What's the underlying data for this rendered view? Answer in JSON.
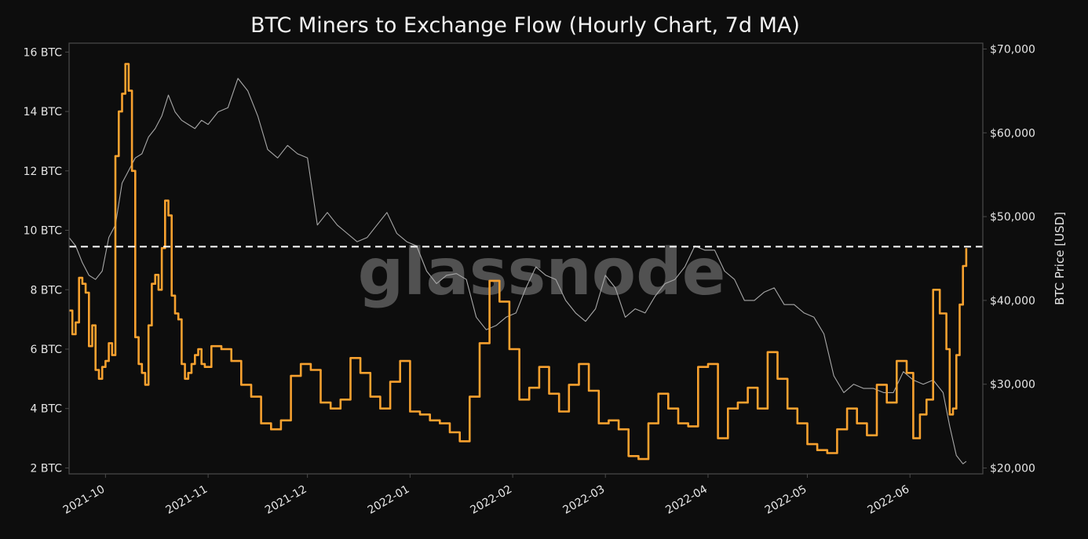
{
  "chart_data": {
    "type": "line",
    "title": "BTC Miners to Exchange Flow (Hourly Chart, 7d MA)",
    "watermark": "glassnode",
    "y_left": {
      "label": "",
      "range": [
        1.8,
        16.3
      ],
      "ticks": [
        2,
        4,
        6,
        8,
        10,
        12,
        14,
        16
      ],
      "tick_labels": [
        "2 BTC",
        "4 BTC",
        "6 BTC",
        "8 BTC",
        "10 BTC",
        "12 BTC",
        "14 BTC",
        "16 BTC"
      ]
    },
    "y_right": {
      "label": "BTC Price [USD]",
      "range": [
        19300,
        70700
      ],
      "ticks": [
        20000,
        30000,
        40000,
        50000,
        60000,
        70000
      ],
      "tick_labels": [
        "$20,000",
        "$30,000",
        "$40,000",
        "$50,000",
        "$60,000",
        "$70,000"
      ]
    },
    "x": {
      "range": [
        "2021-09-20",
        "2022-06-23"
      ],
      "ticks": [
        "2021-10-01",
        "2021-11-01",
        "2021-12-01",
        "2022-01-01",
        "2022-02-01",
        "2022-03-01",
        "2022-04-01",
        "2022-05-01",
        "2022-06-01"
      ],
      "tick_labels": [
        "2021-10",
        "2021-11",
        "2021-12",
        "2022-01",
        "2022-02",
        "2022-03",
        "2022-04",
        "2022-05",
        "2022-06"
      ]
    },
    "reference_line": {
      "axis": "left",
      "value": 9.45,
      "style": "dashed",
      "color": "#ffffff"
    },
    "colors": {
      "background": "#0d0d0d",
      "flow": "#f7a12f",
      "price": "#a8a8a8",
      "axis": "#4a4a4a"
    },
    "series": [
      {
        "key": "flow",
        "axis": "left",
        "x": [
          "2021-09-20",
          "2021-09-21",
          "2021-09-22",
          "2021-09-23",
          "2021-09-24",
          "2021-09-25",
          "2021-09-26",
          "2021-09-27",
          "2021-09-28",
          "2021-09-29",
          "2021-09-30",
          "2021-10-01",
          "2021-10-02",
          "2021-10-03",
          "2021-10-04",
          "2021-10-05",
          "2021-10-06",
          "2021-10-07",
          "2021-10-08",
          "2021-10-09",
          "2021-10-10",
          "2021-10-11",
          "2021-10-12",
          "2021-10-13",
          "2021-10-14",
          "2021-10-15",
          "2021-10-16",
          "2021-10-17",
          "2021-10-18",
          "2021-10-19",
          "2021-10-20",
          "2021-10-21",
          "2021-10-22",
          "2021-10-23",
          "2021-10-24",
          "2021-10-25",
          "2021-10-26",
          "2021-10-27",
          "2021-10-28",
          "2021-10-29",
          "2021-10-30",
          "2021-10-31",
          "2021-11-02",
          "2021-11-05",
          "2021-11-08",
          "2021-11-11",
          "2021-11-14",
          "2021-11-17",
          "2021-11-20",
          "2021-11-23",
          "2021-11-26",
          "2021-11-29",
          "2021-12-02",
          "2021-12-05",
          "2021-12-08",
          "2021-12-11",
          "2021-12-14",
          "2021-12-17",
          "2021-12-20",
          "2021-12-23",
          "2021-12-26",
          "2021-12-29",
          "2022-01-01",
          "2022-01-04",
          "2022-01-07",
          "2022-01-10",
          "2022-01-13",
          "2022-01-16",
          "2022-01-19",
          "2022-01-22",
          "2022-01-25",
          "2022-01-28",
          "2022-01-31",
          "2022-02-03",
          "2022-02-06",
          "2022-02-09",
          "2022-02-12",
          "2022-02-15",
          "2022-02-18",
          "2022-02-21",
          "2022-02-24",
          "2022-02-27",
          "2022-03-02",
          "2022-03-05",
          "2022-03-08",
          "2022-03-11",
          "2022-03-14",
          "2022-03-17",
          "2022-03-20",
          "2022-03-23",
          "2022-03-26",
          "2022-03-29",
          "2022-04-01",
          "2022-04-04",
          "2022-04-07",
          "2022-04-10",
          "2022-04-13",
          "2022-04-16",
          "2022-04-19",
          "2022-04-22",
          "2022-04-25",
          "2022-04-28",
          "2022-05-01",
          "2022-05-04",
          "2022-05-07",
          "2022-05-10",
          "2022-05-13",
          "2022-05-16",
          "2022-05-19",
          "2022-05-22",
          "2022-05-25",
          "2022-05-28",
          "2022-05-31",
          "2022-06-02",
          "2022-06-04",
          "2022-06-06",
          "2022-06-08",
          "2022-06-10",
          "2022-06-12",
          "2022-06-13",
          "2022-06-14",
          "2022-06-15",
          "2022-06-16",
          "2022-06-17",
          "2022-06-18"
        ],
        "values": [
          7.3,
          6.5,
          6.9,
          8.4,
          8.2,
          7.9,
          6.1,
          6.8,
          5.3,
          5.0,
          5.4,
          5.6,
          6.2,
          5.8,
          12.5,
          14.0,
          14.6,
          15.6,
          14.7,
          12.0,
          6.4,
          5.5,
          5.2,
          4.8,
          6.8,
          8.2,
          8.5,
          8.0,
          9.4,
          11.0,
          10.5,
          7.8,
          7.2,
          7.0,
          5.5,
          5.0,
          5.2,
          5.5,
          5.8,
          6.0,
          5.5,
          5.4,
          6.1,
          6.0,
          5.6,
          4.8,
          4.4,
          3.5,
          3.3,
          3.6,
          5.1,
          5.5,
          5.3,
          4.2,
          4.0,
          4.3,
          5.7,
          5.2,
          4.4,
          4.0,
          4.9,
          5.6,
          3.9,
          3.8,
          3.6,
          3.5,
          3.2,
          2.9,
          4.4,
          6.2,
          8.3,
          7.6,
          6.0,
          4.3,
          4.7,
          5.4,
          4.5,
          3.9,
          4.8,
          5.5,
          4.6,
          3.5,
          3.6,
          3.3,
          2.4,
          2.3,
          3.5,
          4.5,
          4.0,
          3.5,
          3.4,
          5.4,
          5.5,
          3.0,
          4.0,
          4.2,
          4.7,
          4.0,
          5.9,
          5.0,
          4.0,
          3.5,
          2.8,
          2.6,
          2.5,
          3.3,
          4.0,
          3.5,
          3.1,
          4.8,
          4.2,
          5.6,
          5.2,
          3.0,
          3.8,
          4.3,
          8.0,
          7.2,
          6.0,
          3.8,
          4.0,
          5.8,
          7.5,
          8.8,
          9.4
        ]
      },
      {
        "key": "price",
        "axis": "right",
        "x": [
          "2021-09-20",
          "2021-09-22",
          "2021-09-24",
          "2021-09-26",
          "2021-09-28",
          "2021-09-30",
          "2021-10-02",
          "2021-10-04",
          "2021-10-06",
          "2021-10-08",
          "2021-10-10",
          "2021-10-12",
          "2021-10-14",
          "2021-10-16",
          "2021-10-18",
          "2021-10-20",
          "2021-10-22",
          "2021-10-24",
          "2021-10-26",
          "2021-10-28",
          "2021-10-30",
          "2021-11-01",
          "2021-11-04",
          "2021-11-07",
          "2021-11-10",
          "2021-11-13",
          "2021-11-16",
          "2021-11-19",
          "2021-11-22",
          "2021-11-25",
          "2021-11-28",
          "2021-12-01",
          "2021-12-04",
          "2021-12-07",
          "2021-12-10",
          "2021-12-13",
          "2021-12-16",
          "2021-12-19",
          "2021-12-22",
          "2021-12-25",
          "2021-12-28",
          "2021-12-31",
          "2022-01-03",
          "2022-01-06",
          "2022-01-09",
          "2022-01-12",
          "2022-01-15",
          "2022-01-18",
          "2022-01-21",
          "2022-01-24",
          "2022-01-27",
          "2022-01-30",
          "2022-02-02",
          "2022-02-05",
          "2022-02-08",
          "2022-02-11",
          "2022-02-14",
          "2022-02-17",
          "2022-02-20",
          "2022-02-23",
          "2022-02-26",
          "2022-03-01",
          "2022-03-04",
          "2022-03-07",
          "2022-03-10",
          "2022-03-13",
          "2022-03-16",
          "2022-03-19",
          "2022-03-22",
          "2022-03-25",
          "2022-03-28",
          "2022-03-31",
          "2022-04-03",
          "2022-04-06",
          "2022-04-09",
          "2022-04-12",
          "2022-04-15",
          "2022-04-18",
          "2022-04-21",
          "2022-04-24",
          "2022-04-27",
          "2022-04-30",
          "2022-05-03",
          "2022-05-06",
          "2022-05-09",
          "2022-05-12",
          "2022-05-15",
          "2022-05-18",
          "2022-05-21",
          "2022-05-24",
          "2022-05-27",
          "2022-05-30",
          "2022-06-02",
          "2022-06-05",
          "2022-06-08",
          "2022-06-11",
          "2022-06-13",
          "2022-06-15",
          "2022-06-17",
          "2022-06-18"
        ],
        "values": [
          47500,
          46500,
          44500,
          43000,
          42500,
          43500,
          47500,
          49000,
          54000,
          55500,
          57000,
          57500,
          59500,
          60500,
          62000,
          64500,
          62500,
          61500,
          61000,
          60500,
          61500,
          61000,
          62500,
          63000,
          66500,
          65000,
          62000,
          58000,
          57000,
          58500,
          57500,
          57000,
          49000,
          50500,
          49000,
          48000,
          47000,
          47500,
          49000,
          50500,
          48000,
          47000,
          46500,
          43500,
          42000,
          43000,
          43200,
          42500,
          38000,
          36500,
          37000,
          38000,
          38500,
          41500,
          44000,
          43000,
          42500,
          40000,
          38500,
          37500,
          39000,
          43000,
          41500,
          38000,
          39000,
          38500,
          40500,
          42000,
          42500,
          44000,
          46500,
          46000,
          46000,
          43500,
          42500,
          40000,
          40000,
          41000,
          41500,
          39500,
          39500,
          38500,
          38000,
          36000,
          31000,
          29000,
          30000,
          29500,
          29500,
          29000,
          29000,
          31500,
          30500,
          30000,
          30500,
          29000,
          25000,
          21500,
          20500,
          20800
        ]
      }
    ]
  }
}
